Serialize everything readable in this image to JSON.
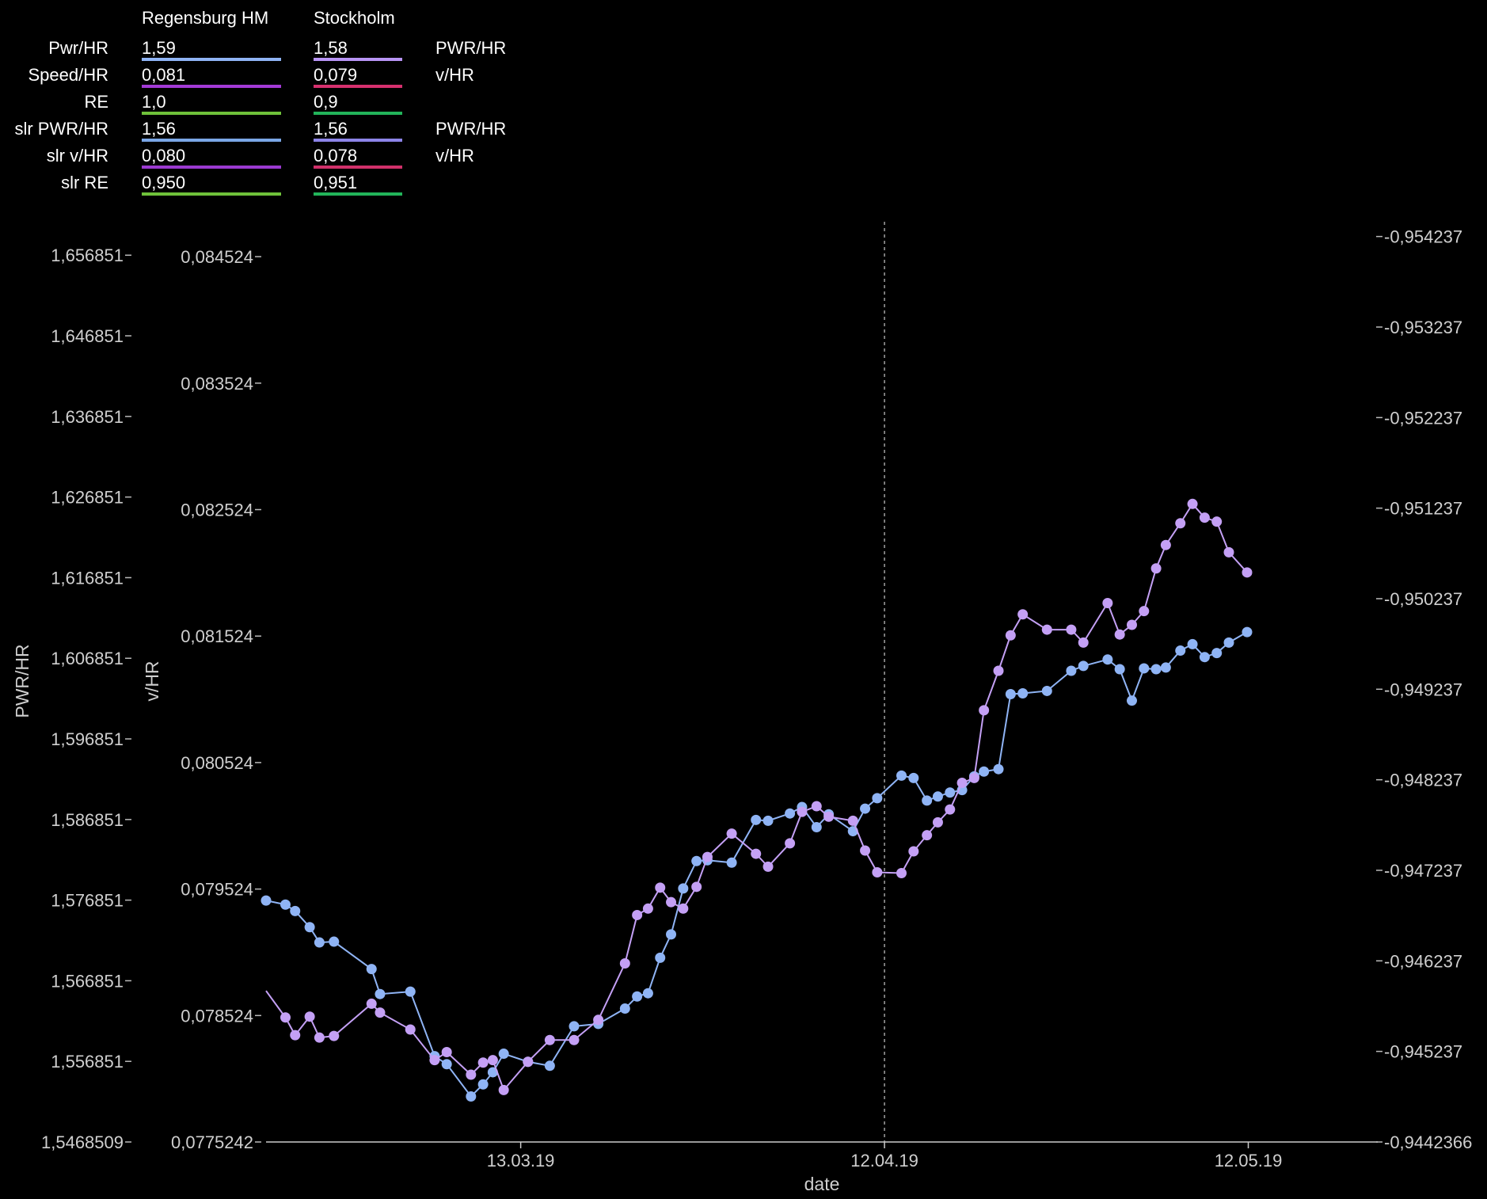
{
  "legend": {
    "col1_header": "Regensburg HM",
    "col2_header": "Stockholm",
    "rows": [
      {
        "label": "Pwr/HR",
        "v1": "1,59",
        "v2": "1,58",
        "unit": "PWR/HR",
        "c1": "#8fb4f5",
        "c2": "#b894f5"
      },
      {
        "label": "Speed/HR",
        "v1": "0,081",
        "v2": "0,079",
        "unit": "v/HR",
        "c1": "#a33ad6",
        "c2": "#d6306e"
      },
      {
        "label": "RE",
        "v1": "1,0",
        "v2": "0,9",
        "unit": "",
        "c1": "#6fc23a",
        "c2": "#22b45a"
      },
      {
        "label": "slr PWR/HR",
        "v1": "1,56",
        "v2": "1,56",
        "unit": "PWR/HR",
        "c1": "#7aa6e6",
        "c2": "#8d84e8"
      },
      {
        "label": "slr v/HR",
        "v1": "0,080",
        "v2": "0,078",
        "unit": "v/HR",
        "c1": "#9b3ad0",
        "c2": "#d0306a"
      },
      {
        "label": "slr RE",
        "v1": "0,950",
        "v2": "0,951",
        "unit": "",
        "c1": "#6fc23a",
        "c2": "#22b45a"
      }
    ]
  },
  "chart_data": {
    "type": "line",
    "xlabel": "date",
    "y_left_label": "PWR/HR",
    "y_mid_label": "v/HR",
    "x_ticks": [
      "13.03.19",
      "12.04.19",
      "12.05.19"
    ],
    "x_tick_days": [
      21,
      51,
      81
    ],
    "x_range": [
      0,
      90.5
    ],
    "marker_day": 51,
    "y_left": {
      "range": [
        1.5468509,
        1.661
      ],
      "ticks": [
        "1,5468509",
        "1,556851",
        "1,566851",
        "1,576851",
        "1,586851",
        "1,596851",
        "1,606851",
        "1,616851",
        "1,626851",
        "1,636851",
        "1,646851",
        "1,656851"
      ],
      "tick_values": [
        1.5468509,
        1.556851,
        1.566851,
        1.576851,
        1.586851,
        1.596851,
        1.606851,
        1.616851,
        1.626851,
        1.636851,
        1.646851,
        1.656851
      ]
    },
    "y_mid": {
      "range": [
        0.0775242,
        0.0848
      ],
      "ticks": [
        "0,0775242",
        "0,078524",
        "0,079524",
        "0,080524",
        "0,081524",
        "0,082524",
        "0,083524",
        "0,084524"
      ],
      "tick_values": [
        0.0775242,
        0.078524,
        0.079524,
        0.080524,
        0.081524,
        0.082524,
        0.083524,
        0.084524
      ]
    },
    "y_right": {
      "range": [
        -0.9442366,
        -0.9544
      ],
      "ticks": [
        "-0,9442366",
        "-0,945237",
        "-0,946237",
        "-0,947237",
        "-0,948237",
        "-0,949237",
        "-0,950237",
        "-0,951237",
        "-0,952237",
        "-0,953237",
        "-0,954237"
      ],
      "tick_values": [
        -0.9442366,
        -0.945237,
        -0.946237,
        -0.947237,
        -0.948237,
        -0.949237,
        -0.950237,
        -0.951237,
        -0.952237,
        -0.953237,
        -0.954237
      ]
    },
    "series": [
      {
        "color": "#8fb4f5",
        "axis": "left",
        "x": [
          0,
          1.6,
          2.4,
          3.6,
          4.4,
          5.6,
          8.7,
          9.4,
          11.9,
          13.9,
          14.9,
          16.9,
          17.9,
          18.7,
          19.6,
          21.6,
          23.4,
          25.4,
          27.4,
          29.6,
          30.6,
          31.5,
          32.5,
          33.4,
          34.4,
          35.5,
          36.4,
          38.4,
          40.4,
          41.4,
          43.2,
          44.2,
          45.4,
          46.4,
          48.4,
          49.4,
          50.4,
          52.4,
          53.4,
          54.5,
          55.4,
          56.4,
          57.4,
          58.4,
          59.2,
          60.4,
          61.4,
          62.4,
          64.4,
          66.4,
          67.4,
          69.4,
          70.4,
          71.4,
          72.4,
          73.4,
          74.2,
          75.4,
          76.4,
          77.4,
          78.4,
          79.4,
          80.9
        ],
        "y": [
          1.5768,
          1.5763,
          1.5755,
          1.5735,
          1.5716,
          1.5717,
          1.5683,
          1.5652,
          1.5655,
          1.5575,
          1.5565,
          1.5525,
          1.554,
          1.5555,
          1.5578,
          1.5568,
          1.5563,
          1.5612,
          1.5615,
          1.5634,
          1.5649,
          1.5653,
          1.5697,
          1.5726,
          1.5783,
          1.5817,
          1.5818,
          1.5815,
          1.5868,
          1.5867,
          1.5876,
          1.5884,
          1.5859,
          1.5875,
          1.5854,
          1.5882,
          1.5895,
          1.5923,
          1.592,
          1.5892,
          1.5897,
          1.5902,
          1.5905,
          1.5922,
          1.5928,
          1.5931,
          1.6024,
          1.6025,
          1.6028,
          1.6053,
          1.6059,
          1.6067,
          1.6055,
          1.6016,
          1.6056,
          1.6055,
          1.6057,
          1.6078,
          1.6086,
          1.607,
          1.6075,
          1.6088,
          1.6101
        ]
      },
      {
        "color": "#c4a0f5",
        "axis": "left",
        "x": [
          0,
          1.6,
          2.4,
          3.6,
          4.4,
          5.6,
          8.7,
          9.4,
          11.9,
          13.9,
          14.9,
          16.9,
          17.9,
          18.7,
          19.6,
          21.6,
          23.4,
          25.4,
          27.4,
          29.6,
          30.6,
          31.5,
          32.5,
          33.4,
          34.4,
          35.5,
          36.4,
          38.4,
          40.4,
          41.4,
          43.2,
          44.2,
          45.4,
          46.4,
          48.4,
          49.4,
          50.4,
          52.4,
          53.4,
          54.5,
          55.4,
          56.4,
          57.4,
          58.4,
          59.2,
          60.4,
          61.4,
          62.4,
          64.4,
          66.4,
          67.4,
          69.4,
          70.4,
          71.4,
          72.4,
          73.4,
          74.2,
          75.4,
          76.4,
          77.4,
          78.4,
          79.4,
          80.9
        ],
        "y": [
          1.5656,
          1.5623,
          1.5601,
          1.5624,
          1.5598,
          1.56,
          1.564,
          1.5629,
          1.5608,
          1.557,
          1.558,
          1.5552,
          1.5567,
          1.557,
          1.5533,
          1.5568,
          1.5595,
          1.5595,
          1.562,
          1.569,
          1.575,
          1.5758,
          1.5784,
          1.5766,
          1.5758,
          1.5785,
          1.5822,
          1.5851,
          1.5826,
          1.581,
          1.5839,
          1.5878,
          1.5885,
          1.5872,
          1.5867,
          1.583,
          1.5803,
          1.5802,
          1.5829,
          1.5849,
          1.5865,
          1.5881,
          1.5914,
          1.592,
          1.6004,
          1.6053,
          1.6097,
          1.6123,
          1.6104,
          1.6104,
          1.6088,
          1.6137,
          1.6098,
          1.611,
          1.6127,
          1.618,
          1.6209,
          1.6236,
          1.626,
          1.6243,
          1.6238,
          1.62,
          1.6175
        ]
      }
    ]
  }
}
